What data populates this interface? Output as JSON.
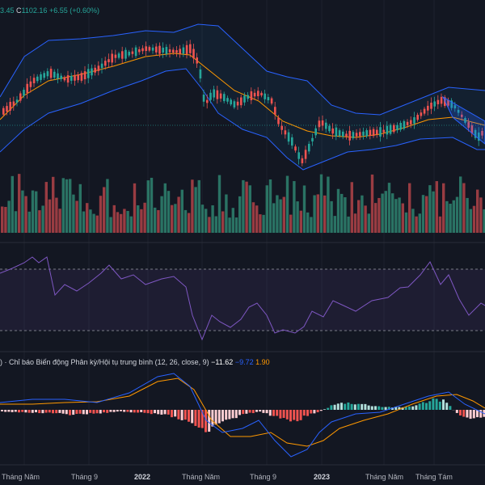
{
  "ohlc": {
    "open_tail": "3.45",
    "close_label": "C",
    "close_value": "1102.16",
    "change": "+6.55 (+0.60%)"
  },
  "macd_legend": {
    "prefix": ") · Chỉ báo Biến động Phân kỳ/Hội tụ trung bình (12, 26, close, 9)",
    "v1": "−11.62",
    "v2": "−9.72",
    "v3": "1.90"
  },
  "x_axis": {
    "labels": [
      "Tháng Năm",
      "Tháng 9",
      "2022",
      "Tháng Năm",
      "Tháng 9",
      "2023",
      "Tháng Năm",
      "Tháng Tám"
    ],
    "bold": [
      false,
      false,
      true,
      false,
      false,
      true,
      false,
      false
    ]
  },
  "colors": {
    "background": "#131722",
    "up": "#26a69a",
    "down": "#ef5350",
    "bollinger": "#2962ff",
    "ma": "#ff9800",
    "rsi": "#7e57c2",
    "macd": "#2962ff",
    "signal": "#ff9800"
  },
  "icons": []
}
